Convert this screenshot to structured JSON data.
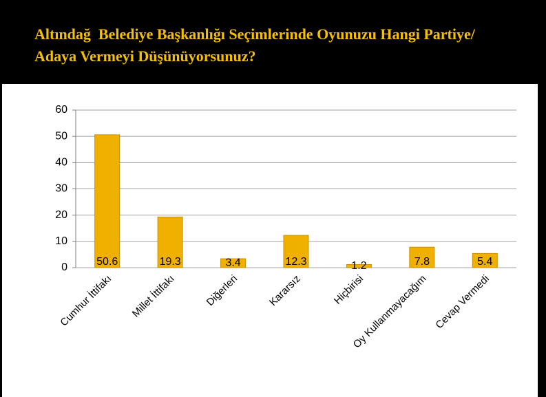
{
  "chart_data": {
    "type": "bar",
    "title": "Altındağ  Belediye Başkanlığı Seçimlerinde Oyunuzu Hangi Partiye/ Adaya Vermeyi Düşünüyorsunuz?",
    "categories": [
      "Cumhur İttifakı",
      "Millet İttifakı",
      "Diğerleri",
      "Kararsız",
      "Hiçbirisi",
      "Oy Kullanmayacağım",
      "Cevap Vermedi"
    ],
    "values": [
      50.6,
      19.3,
      3.4,
      12.3,
      1.2,
      7.8,
      5.4
    ],
    "color": "#f0b000",
    "ylim": [
      0,
      60
    ],
    "yticks": [
      0,
      10,
      20,
      30,
      40,
      50,
      60
    ],
    "grid": true
  }
}
